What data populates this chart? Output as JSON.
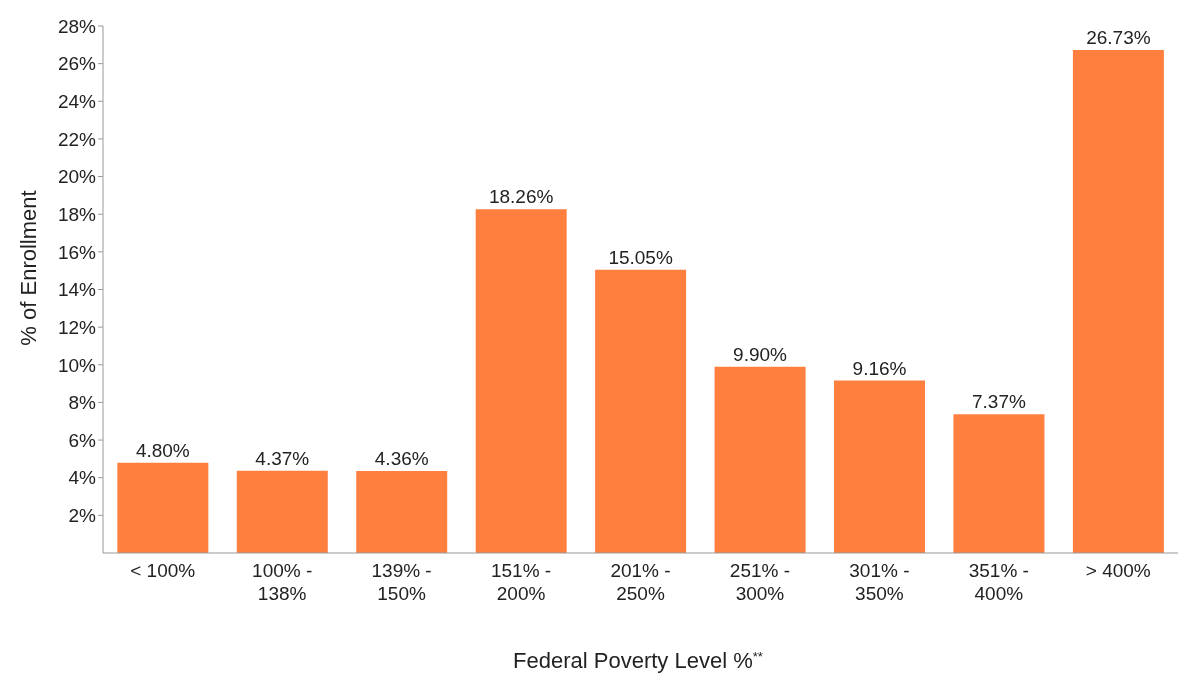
{
  "chart_data": {
    "type": "bar",
    "xlabel": "Federal Poverty Level %$^{**}$",
    "ylabel": "% of Enrollment",
    "categories": [
      "< 100%",
      "100% - 138%",
      "139% - 150%",
      "151% - 200%",
      "201% - 250%",
      "251% - 300%",
      "301% - 350%",
      "351% - 400%",
      "> 400%"
    ],
    "values": [
      4.8,
      4.37,
      4.36,
      18.26,
      15.05,
      9.9,
      9.16,
      7.37,
      26.73
    ],
    "value_labels": [
      "4.80%",
      "4.37%",
      "4.36%",
      "18.26%",
      "15.05%",
      "9.90%",
      "9.16%",
      "7.37%",
      "26.73%"
    ],
    "color": "#ff7f3f",
    "ylim": [
      0,
      28
    ],
    "yticks": [
      {
        "value": 2,
        "label": "2%"
      },
      {
        "value": 4,
        "label": "4%"
      },
      {
        "value": 6,
        "label": "6%"
      },
      {
        "value": 8,
        "label": "8%"
      },
      {
        "value": 10,
        "label": "10%"
      },
      {
        "value": 12,
        "label": "12%"
      },
      {
        "value": 14,
        "label": "14%"
      },
      {
        "value": 16,
        "label": "16%"
      },
      {
        "value": 18,
        "label": "18%"
      },
      {
        "value": 20,
        "label": "20%"
      },
      {
        "value": 22,
        "label": "22%"
      },
      {
        "value": 24,
        "label": "24%"
      },
      {
        "value": 26,
        "label": "26%"
      },
      {
        "value": 28,
        "label": "28%"
      }
    ],
    "grid": false,
    "legend": false
  }
}
